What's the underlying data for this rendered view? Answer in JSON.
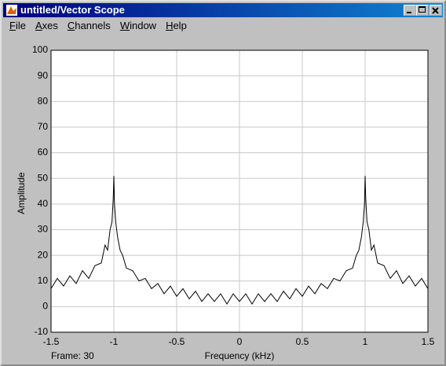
{
  "window": {
    "title": "untitled/Vector Scope",
    "menu": [
      "File",
      "Axes",
      "Channels",
      "Window",
      "Help"
    ]
  },
  "chart_data": {
    "type": "line",
    "ylabel": "Amplitude",
    "xlabel": "Frequency (kHz)",
    "x": [
      -1.5,
      -1.45,
      -1.4,
      -1.35,
      -1.3,
      -1.25,
      -1.2,
      -1.15,
      -1.1,
      -1.07,
      -1.05,
      -1.03,
      -1.015,
      -1.005,
      -1,
      -0.995,
      -0.985,
      -0.97,
      -0.95,
      -0.93,
      -0.9,
      -0.85,
      -0.8,
      -0.75,
      -0.7,
      -0.65,
      -0.6,
      -0.55,
      -0.5,
      -0.45,
      -0.4,
      -0.35,
      -0.3,
      -0.25,
      -0.2,
      -0.15,
      -0.1,
      -0.05,
      0,
      0.05,
      0.1,
      0.15,
      0.2,
      0.25,
      0.3,
      0.35,
      0.4,
      0.45,
      0.5,
      0.55,
      0.6,
      0.65,
      0.7,
      0.75,
      0.8,
      0.85,
      0.9,
      0.93,
      0.95,
      0.97,
      0.985,
      0.995,
      1,
      1.005,
      1.015,
      1.03,
      1.05,
      1.07,
      1.1,
      1.15,
      1.2,
      1.25,
      1.3,
      1.35,
      1.4,
      1.45,
      1.5
    ],
    "series": [
      {
        "color": "#000000",
        "values": [
          7,
          11,
          8,
          12,
          9,
          14,
          11,
          16,
          17,
          24,
          22,
          30,
          33,
          42,
          51,
          40,
          33,
          27,
          22,
          20,
          15,
          14,
          10,
          11,
          7,
          9,
          5,
          8,
          4,
          7,
          3,
          6,
          2,
          5,
          2,
          5,
          1,
          5,
          2,
          5,
          1,
          5,
          2,
          5,
          2,
          6,
          3,
          7,
          4,
          8,
          5,
          9,
          7,
          11,
          10,
          14,
          15,
          20,
          22,
          27,
          33,
          40,
          51,
          42,
          33,
          30,
          22,
          24,
          17,
          16,
          11,
          14,
          9,
          12,
          8,
          11,
          7
        ]
      }
    ],
    "xlim": [
      -1.5,
      1.5
    ],
    "ylim": [
      -10,
      100
    ],
    "xticks": [
      -1.5,
      -1,
      -0.5,
      0,
      0.5,
      1,
      1.5
    ],
    "yticks": [
      -10,
      0,
      10,
      20,
      30,
      40,
      50,
      60,
      70,
      80,
      90,
      100
    ],
    "grid": true
  },
  "status": "Frame: 30"
}
